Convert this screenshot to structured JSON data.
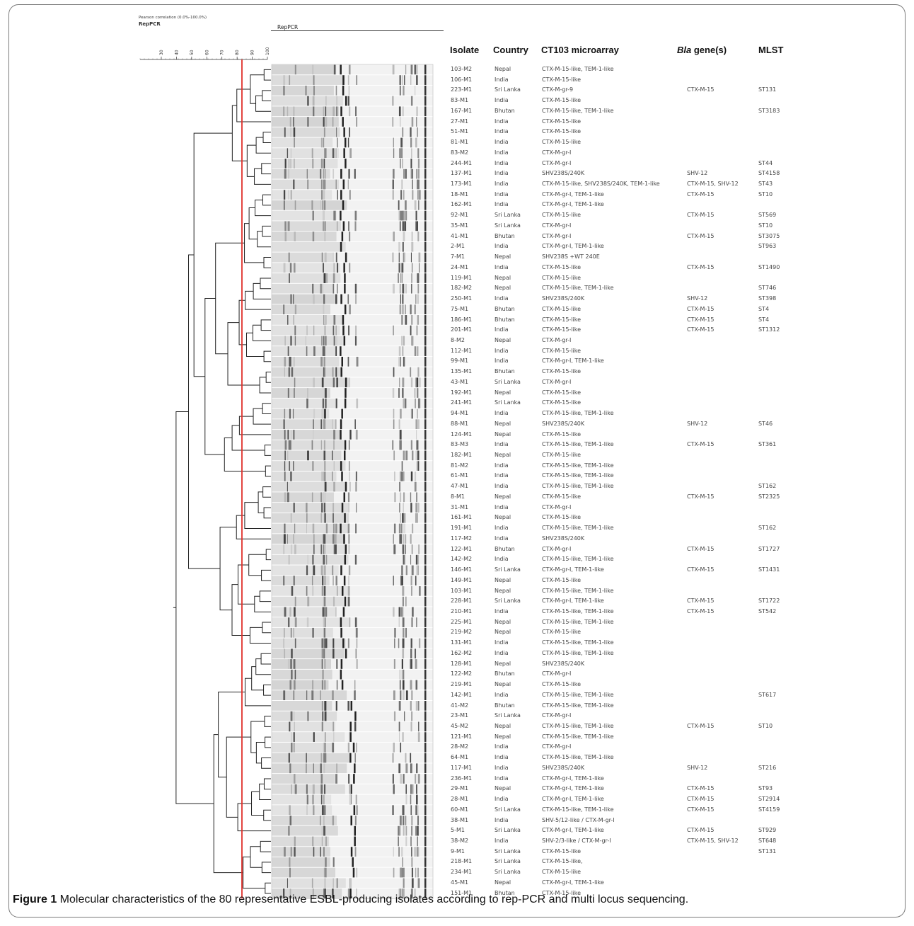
{
  "header": {
    "top_label": "Pearson correlation (0.0%-100.0%)",
    "sub_label": "RepPCR",
    "rep_label": "RepPCR",
    "scale_ticks": [
      "30",
      "40",
      "50",
      "60",
      "70",
      "80",
      "90",
      "100"
    ]
  },
  "columns": {
    "isolate": "Isolate",
    "country": "Country",
    "microarray": "CT103 microarray",
    "bla_italic": "Bla",
    "bla_rest": " gene(s)",
    "mlst": "MLST"
  },
  "cutoff_line_color": "#e0302a",
  "rows": [
    {
      "isolate": "103-M2",
      "country": "Nepal",
      "microarray": "CTX-M-15-like, TEM-1-like",
      "bla": "",
      "mlst": ""
    },
    {
      "isolate": "106-M1",
      "country": "India",
      "microarray": "CTX-M-15-like",
      "bla": "",
      "mlst": ""
    },
    {
      "isolate": "223-M1",
      "country": "Sri Lanka",
      "microarray": "CTX-M-gr-9",
      "bla": "CTX-M-15",
      "mlst": "ST131"
    },
    {
      "isolate": "83-M1",
      "country": "India",
      "microarray": "CTX-M-15-like",
      "bla": "",
      "mlst": ""
    },
    {
      "isolate": "167-M1",
      "country": "Bhutan",
      "microarray": "CTX-M-15-like, TEM-1-like",
      "bla": "",
      "mlst": "ST3183"
    },
    {
      "isolate": "27-M1",
      "country": "India",
      "microarray": "CTX-M-15-like",
      "bla": "",
      "mlst": ""
    },
    {
      "isolate": "51-M1",
      "country": "India",
      "microarray": "CTX-M-15-like",
      "bla": "",
      "mlst": ""
    },
    {
      "isolate": "81-M1",
      "country": "India",
      "microarray": "CTX-M-15-like",
      "bla": "",
      "mlst": ""
    },
    {
      "isolate": "83-M2",
      "country": "India",
      "microarray": "CTX-M-gr-I",
      "bla": "",
      "mlst": ""
    },
    {
      "isolate": "244-M1",
      "country": "India",
      "microarray": "CTX-M-gr-I",
      "bla": "",
      "mlst": "ST44"
    },
    {
      "isolate": "137-M1",
      "country": "India",
      "microarray": "SHV238S/240K",
      "bla": "SHV-12",
      "mlst": "ST4158"
    },
    {
      "isolate": "173-M1",
      "country": "India",
      "microarray": "CTX-M-15-like, SHV238S/240K, TEM-1-like",
      "bla": "CTX-M-15, SHV-12",
      "mlst": "ST43"
    },
    {
      "isolate": "18-M1",
      "country": "India",
      "microarray": "CTX-M-gr-I, TEM-1-like",
      "bla": "CTX-M-15",
      "mlst": "ST10"
    },
    {
      "isolate": "162-M1",
      "country": "India",
      "microarray": "CTX-M-gr-I, TEM-1-like",
      "bla": "",
      "mlst": ""
    },
    {
      "isolate": "92-M1",
      "country": "Sri Lanka",
      "microarray": "CTX-M-15-like",
      "bla": "CTX-M-15",
      "mlst": "ST569"
    },
    {
      "isolate": "35-M1",
      "country": "Sri Lanka",
      "microarray": "CTX-M-gr-I",
      "bla": "",
      "mlst": "ST10"
    },
    {
      "isolate": "41-M1",
      "country": "Bhutan",
      "microarray": "CTX-M-gr-I",
      "bla": "CTX-M-15",
      "mlst": "ST3075"
    },
    {
      "isolate": "2-M1",
      "country": "India",
      "microarray": "CTX-M-gr-I, TEM-1-like",
      "bla": "",
      "mlst": "ST963"
    },
    {
      "isolate": "7-M1",
      "country": "Nepal",
      "microarray": "SHV238S +WT 240E",
      "bla": "",
      "mlst": ""
    },
    {
      "isolate": "24-M1",
      "country": "India",
      "microarray": "CTX-M-15-like",
      "bla": "CTX-M-15",
      "mlst": "ST1490"
    },
    {
      "isolate": "119-M1",
      "country": "Nepal",
      "microarray": "CTX-M-15-like",
      "bla": "",
      "mlst": ""
    },
    {
      "isolate": "182-M2",
      "country": "Nepal",
      "microarray": "CTX-M-15-like, TEM-1-like",
      "bla": "",
      "mlst": "ST746"
    },
    {
      "isolate": "250-M1",
      "country": "India",
      "microarray": "SHV238S/240K",
      "bla": "SHV-12",
      "mlst": "ST398"
    },
    {
      "isolate": "75-M1",
      "country": "Bhutan",
      "microarray": "CTX-M-15-like",
      "bla": "CTX-M-15",
      "mlst": "ST4"
    },
    {
      "isolate": "186-M1",
      "country": "Bhutan",
      "microarray": "CTX-M-15-like",
      "bla": "CTX-M-15",
      "mlst": "ST4"
    },
    {
      "isolate": "201-M1",
      "country": "India",
      "microarray": "CTX-M-15-like",
      "bla": "CTX-M-15",
      "mlst": "ST1312"
    },
    {
      "isolate": "8-M2",
      "country": "Nepal",
      "microarray": "CTX-M-gr-I",
      "bla": "",
      "mlst": ""
    },
    {
      "isolate": "112-M1",
      "country": "India",
      "microarray": "CTX-M-15-like",
      "bla": "",
      "mlst": ""
    },
    {
      "isolate": "99-M1",
      "country": "India",
      "microarray": "CTX-M-gr-I, TEM-1-like",
      "bla": "",
      "mlst": ""
    },
    {
      "isolate": "135-M1",
      "country": "Bhutan",
      "microarray": "CTX-M-15-like",
      "bla": "",
      "mlst": ""
    },
    {
      "isolate": "43-M1",
      "country": "Sri Lanka",
      "microarray": "CTX-M-gr-I",
      "bla": "",
      "mlst": ""
    },
    {
      "isolate": "192-M1",
      "country": "Nepal",
      "microarray": "CTX-M-15-like",
      "bla": "",
      "mlst": ""
    },
    {
      "isolate": "241-M1",
      "country": "Sri Lanka",
      "microarray": "CTX-M-15-like",
      "bla": "",
      "mlst": ""
    },
    {
      "isolate": "94-M1",
      "country": "India",
      "microarray": "CTX-M-15-like, TEM-1-like",
      "bla": "",
      "mlst": ""
    },
    {
      "isolate": "88-M1",
      "country": "Nepal",
      "microarray": "SHV238S/240K",
      "bla": "SHV-12",
      "mlst": "ST46"
    },
    {
      "isolate": "124-M1",
      "country": "Nepal",
      "microarray": "CTX-M-15-like",
      "bla": "",
      "mlst": ""
    },
    {
      "isolate": "83-M3",
      "country": "India",
      "microarray": "CTX-M-15-like, TEM-1-like",
      "bla": "CTX-M-15",
      "mlst": "ST361"
    },
    {
      "isolate": "182-M1",
      "country": "Nepal",
      "microarray": "CTX-M-15-like",
      "bla": "",
      "mlst": ""
    },
    {
      "isolate": "81-M2",
      "country": "India",
      "microarray": "CTX-M-15-like, TEM-1-like",
      "bla": "",
      "mlst": ""
    },
    {
      "isolate": "61-M1",
      "country": "India",
      "microarray": "CTX-M-15-like, TEM-1-like",
      "bla": "",
      "mlst": ""
    },
    {
      "isolate": "47-M1",
      "country": "India",
      "microarray": "CTX-M-15-like, TEM-1-like",
      "bla": "",
      "mlst": "ST162"
    },
    {
      "isolate": "8-M1",
      "country": "Nepal",
      "microarray": "CTX-M-15-like",
      "bla": "CTX-M-15",
      "mlst": "ST2325"
    },
    {
      "isolate": "31-M1",
      "country": "India",
      "microarray": "CTX-M-gr-I",
      "bla": "",
      "mlst": ""
    },
    {
      "isolate": "161-M1",
      "country": "Nepal",
      "microarray": "CTX-M-15-like",
      "bla": "",
      "mlst": ""
    },
    {
      "isolate": "191-M1",
      "country": "India",
      "microarray": "CTX-M-15-like, TEM-1-like",
      "bla": "",
      "mlst": "ST162"
    },
    {
      "isolate": "117-M2",
      "country": "India",
      "microarray": "SHV238S/240K",
      "bla": "",
      "mlst": ""
    },
    {
      "isolate": "122-M1",
      "country": "Bhutan",
      "microarray": "CTX-M-gr-I",
      "bla": "CTX-M-15",
      "mlst": "ST1727"
    },
    {
      "isolate": "142-M2",
      "country": "India",
      "microarray": "CTX-M-15-like, TEM-1-like",
      "bla": "",
      "mlst": ""
    },
    {
      "isolate": "146-M1",
      "country": "Sri Lanka",
      "microarray": "CTX-M-gr-I, TEM-1-like",
      "bla": "CTX-M-15",
      "mlst": "ST1431"
    },
    {
      "isolate": "149-M1",
      "country": "Nepal",
      "microarray": "CTX-M-15-like",
      "bla": "",
      "mlst": ""
    },
    {
      "isolate": "103-M1",
      "country": "Nepal",
      "microarray": "CTX-M-15-like, TEM-1-like",
      "bla": "",
      "mlst": ""
    },
    {
      "isolate": "228-M1",
      "country": "Sri Lanka",
      "microarray": "CTX-M-gr-I, TEM-1-like",
      "bla": "CTX-M-15",
      "mlst": "ST1722"
    },
    {
      "isolate": "210-M1",
      "country": "India",
      "microarray": "CTX-M-15-like, TEM-1-like",
      "bla": "CTX-M-15",
      "mlst": "ST542"
    },
    {
      "isolate": "225-M1",
      "country": "Nepal",
      "microarray": "CTX-M-15-like, TEM-1-like",
      "bla": "",
      "mlst": ""
    },
    {
      "isolate": "219-M2",
      "country": "Nepal",
      "microarray": "CTX-M-15-like",
      "bla": "",
      "mlst": ""
    },
    {
      "isolate": "131-M1",
      "country": "India",
      "microarray": "CTX-M-15-like, TEM-1-like",
      "bla": "",
      "mlst": ""
    },
    {
      "isolate": "162-M2",
      "country": "India",
      "microarray": "CTX-M-15-like, TEM-1-like",
      "bla": "",
      "mlst": ""
    },
    {
      "isolate": "128-M1",
      "country": "Nepal",
      "microarray": "SHV238S/240K",
      "bla": "",
      "mlst": ""
    },
    {
      "isolate": "122-M2",
      "country": "Bhutan",
      "microarray": "CTX-M-gr-I",
      "bla": "",
      "mlst": ""
    },
    {
      "isolate": "219-M1",
      "country": "Nepal",
      "microarray": "CTX-M-15-like",
      "bla": "",
      "mlst": ""
    },
    {
      "isolate": "142-M1",
      "country": "India",
      "microarray": "CTX-M-15-like, TEM-1-like",
      "bla": "",
      "mlst": "ST617"
    },
    {
      "isolate": "41-M2",
      "country": "Bhutan",
      "microarray": "CTX-M-15-like, TEM-1-like",
      "bla": "",
      "mlst": ""
    },
    {
      "isolate": "23-M1",
      "country": "Sri Lanka",
      "microarray": "CTX-M-gr-I",
      "bla": "",
      "mlst": ""
    },
    {
      "isolate": "45-M2",
      "country": "Nepal",
      "microarray": "CTX-M-15-like, TEM-1-like",
      "bla": "CTX-M-15",
      "mlst": "ST10"
    },
    {
      "isolate": "121-M1",
      "country": "Nepal",
      "microarray": "CTX-M-15-like, TEM-1-like",
      "bla": "",
      "mlst": ""
    },
    {
      "isolate": "28-M2",
      "country": "India",
      "microarray": "CTX-M-gr-I",
      "bla": "",
      "mlst": ""
    },
    {
      "isolate": "64-M1",
      "country": "India",
      "microarray": "CTX-M-15-like, TEM-1-like",
      "bla": "",
      "mlst": ""
    },
    {
      "isolate": "117-M1",
      "country": "India",
      "microarray": "SHV238S/240K",
      "bla": "SHV-12",
      "mlst": "ST216"
    },
    {
      "isolate": "236-M1",
      "country": "India",
      "microarray": "CTX-M-gr-I, TEM-1-like",
      "bla": "",
      "mlst": ""
    },
    {
      "isolate": "29-M1",
      "country": "Nepal",
      "microarray": "CTX-M-gr-I, TEM-1-like",
      "bla": "CTX-M-15",
      "mlst": "ST93"
    },
    {
      "isolate": "28-M1",
      "country": "India",
      "microarray": "CTX-M-gr-I, TEM-1-like",
      "bla": "CTX-M-15",
      "mlst": "ST2914"
    },
    {
      "isolate": "60-M1",
      "country": "Sri Lanka",
      "microarray": "CTX-M-15-like, TEM-1-like",
      "bla": "CTX-M-15",
      "mlst": "ST4159"
    },
    {
      "isolate": "38-M1",
      "country": "India",
      "microarray": "SHV-5/12-like / CTX-M-gr-I",
      "bla": "",
      "mlst": ""
    },
    {
      "isolate": "5-M1",
      "country": "Sri Lanka",
      "microarray": "CTX-M-gr-I, TEM-1-like",
      "bla": "CTX-M-15",
      "mlst": "ST929"
    },
    {
      "isolate": "38-M2",
      "country": "India",
      "microarray": "SHV-2/3-like / CTX-M-gr-I",
      "bla": "CTX-M-15, SHV-12",
      "mlst": "ST648"
    },
    {
      "isolate": "9-M1",
      "country": "Sri Lanka",
      "microarray": "CTX-M-15-like",
      "bla": "",
      "mlst": "ST131"
    },
    {
      "isolate": "218-M1",
      "country": "Sri Lanka",
      "microarray": "CTX-M-15-like,",
      "bla": "",
      "mlst": ""
    },
    {
      "isolate": "234-M1",
      "country": "Sri Lanka",
      "microarray": "CTX-M-15-like",
      "bla": "",
      "mlst": ""
    },
    {
      "isolate": "45-M1",
      "country": "Nepal",
      "microarray": "CTX-M-gr-I, TEM-1-like",
      "bla": "",
      "mlst": ""
    },
    {
      "isolate": "151-M1",
      "country": "Bhutan",
      "microarray": "CTX-M-15-like",
      "bla": "",
      "mlst": ""
    }
  ],
  "caption": {
    "label": "Figure 1",
    "text": " Molecular characteristics of the 80 representative ESBL-producing isolates according to rep-PCR and multi locus sequencing."
  }
}
